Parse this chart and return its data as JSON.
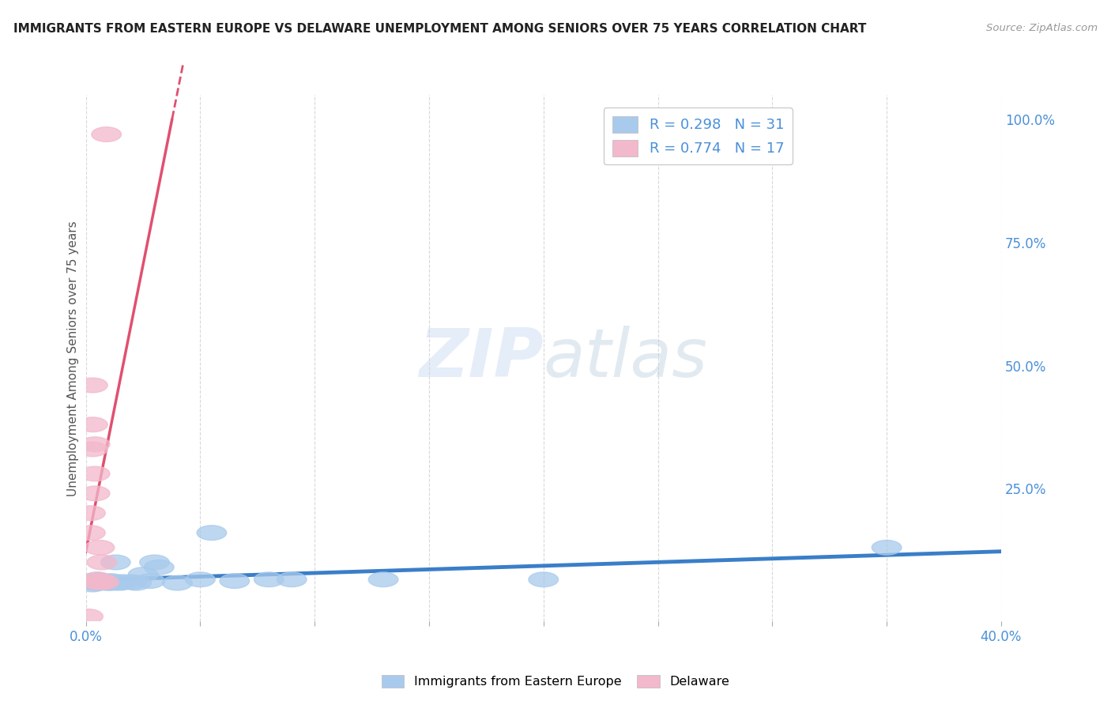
{
  "title": "IMMIGRANTS FROM EASTERN EUROPE VS DELAWARE UNEMPLOYMENT AMONG SENIORS OVER 75 YEARS CORRELATION CHART",
  "source": "Source: ZipAtlas.com",
  "ylabel": "Unemployment Among Seniors over 75 years",
  "xlim": [
    0.0,
    0.4
  ],
  "ylim": [
    -0.02,
    1.05
  ],
  "xticks": [
    0.0,
    0.05,
    0.1,
    0.15,
    0.2,
    0.25,
    0.3,
    0.35,
    0.4
  ],
  "xticklabels": [
    "0.0%",
    "",
    "",
    "",
    "",
    "",
    "",
    "",
    "40.0%"
  ],
  "ytick_right": [
    0.0,
    0.25,
    0.5,
    0.75,
    1.0
  ],
  "ytick_right_labels": [
    "",
    "25.0%",
    "50.0%",
    "75.0%",
    "100.0%"
  ],
  "watermark": "ZIPatlas",
  "legend_label1": "R = 0.298   N = 31",
  "legend_label2": "R = 0.774   N = 17",
  "color_blue": "#A8CAEC",
  "color_pink": "#F2B8CB",
  "color_blue_line": "#3A7EC8",
  "color_pink_line": "#E05070",
  "blue_scatter_x": [
    0.002,
    0.003,
    0.004,
    0.005,
    0.005,
    0.006,
    0.007,
    0.008,
    0.009,
    0.01,
    0.01,
    0.011,
    0.012,
    0.013,
    0.015,
    0.016,
    0.02,
    0.022,
    0.025,
    0.028,
    0.03,
    0.032,
    0.04,
    0.05,
    0.055,
    0.065,
    0.08,
    0.09,
    0.13,
    0.2,
    0.35
  ],
  "blue_scatter_y": [
    0.06,
    0.055,
    0.058,
    0.065,
    0.058,
    0.06,
    0.062,
    0.06,
    0.058,
    0.06,
    0.058,
    0.062,
    0.058,
    0.1,
    0.058,
    0.06,
    0.06,
    0.058,
    0.075,
    0.062,
    0.1,
    0.09,
    0.058,
    0.065,
    0.16,
    0.062,
    0.065,
    0.065,
    0.065,
    0.065,
    0.13
  ],
  "pink_scatter_x": [
    0.001,
    0.002,
    0.002,
    0.003,
    0.003,
    0.003,
    0.004,
    0.004,
    0.004,
    0.005,
    0.005,
    0.005,
    0.006,
    0.007,
    0.007,
    0.008,
    0.009
  ],
  "pink_scatter_y": [
    -0.01,
    0.2,
    0.16,
    0.38,
    0.33,
    0.46,
    0.28,
    0.24,
    0.34,
    0.06,
    0.06,
    0.065,
    0.13,
    0.1,
    0.06,
    0.06,
    0.97
  ],
  "background_color": "#FFFFFF",
  "grid_color": "#D8D8D8"
}
